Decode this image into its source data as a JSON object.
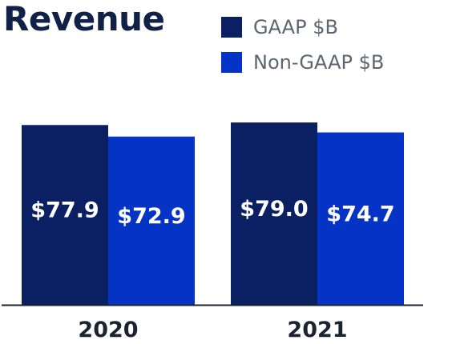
{
  "chart_data": {
    "type": "bar",
    "title": "Revenue",
    "categories": [
      "2020",
      "2021"
    ],
    "series": [
      {
        "name": "GAAP $B",
        "values": [
          77.9,
          79.0
        ],
        "labels": [
          "$77.9",
          "$79.0"
        ],
        "color": "#0b1f63"
      },
      {
        "name": "Non-GAAP $B",
        "values": [
          72.9,
          74.7
        ],
        "labels": [
          "$72.9",
          "$74.7"
        ],
        "color": "#0433c5"
      }
    ],
    "xlabel": "",
    "ylabel": "",
    "ylim": [
      0,
      80
    ],
    "grid": false,
    "legend_position": "top-right"
  }
}
